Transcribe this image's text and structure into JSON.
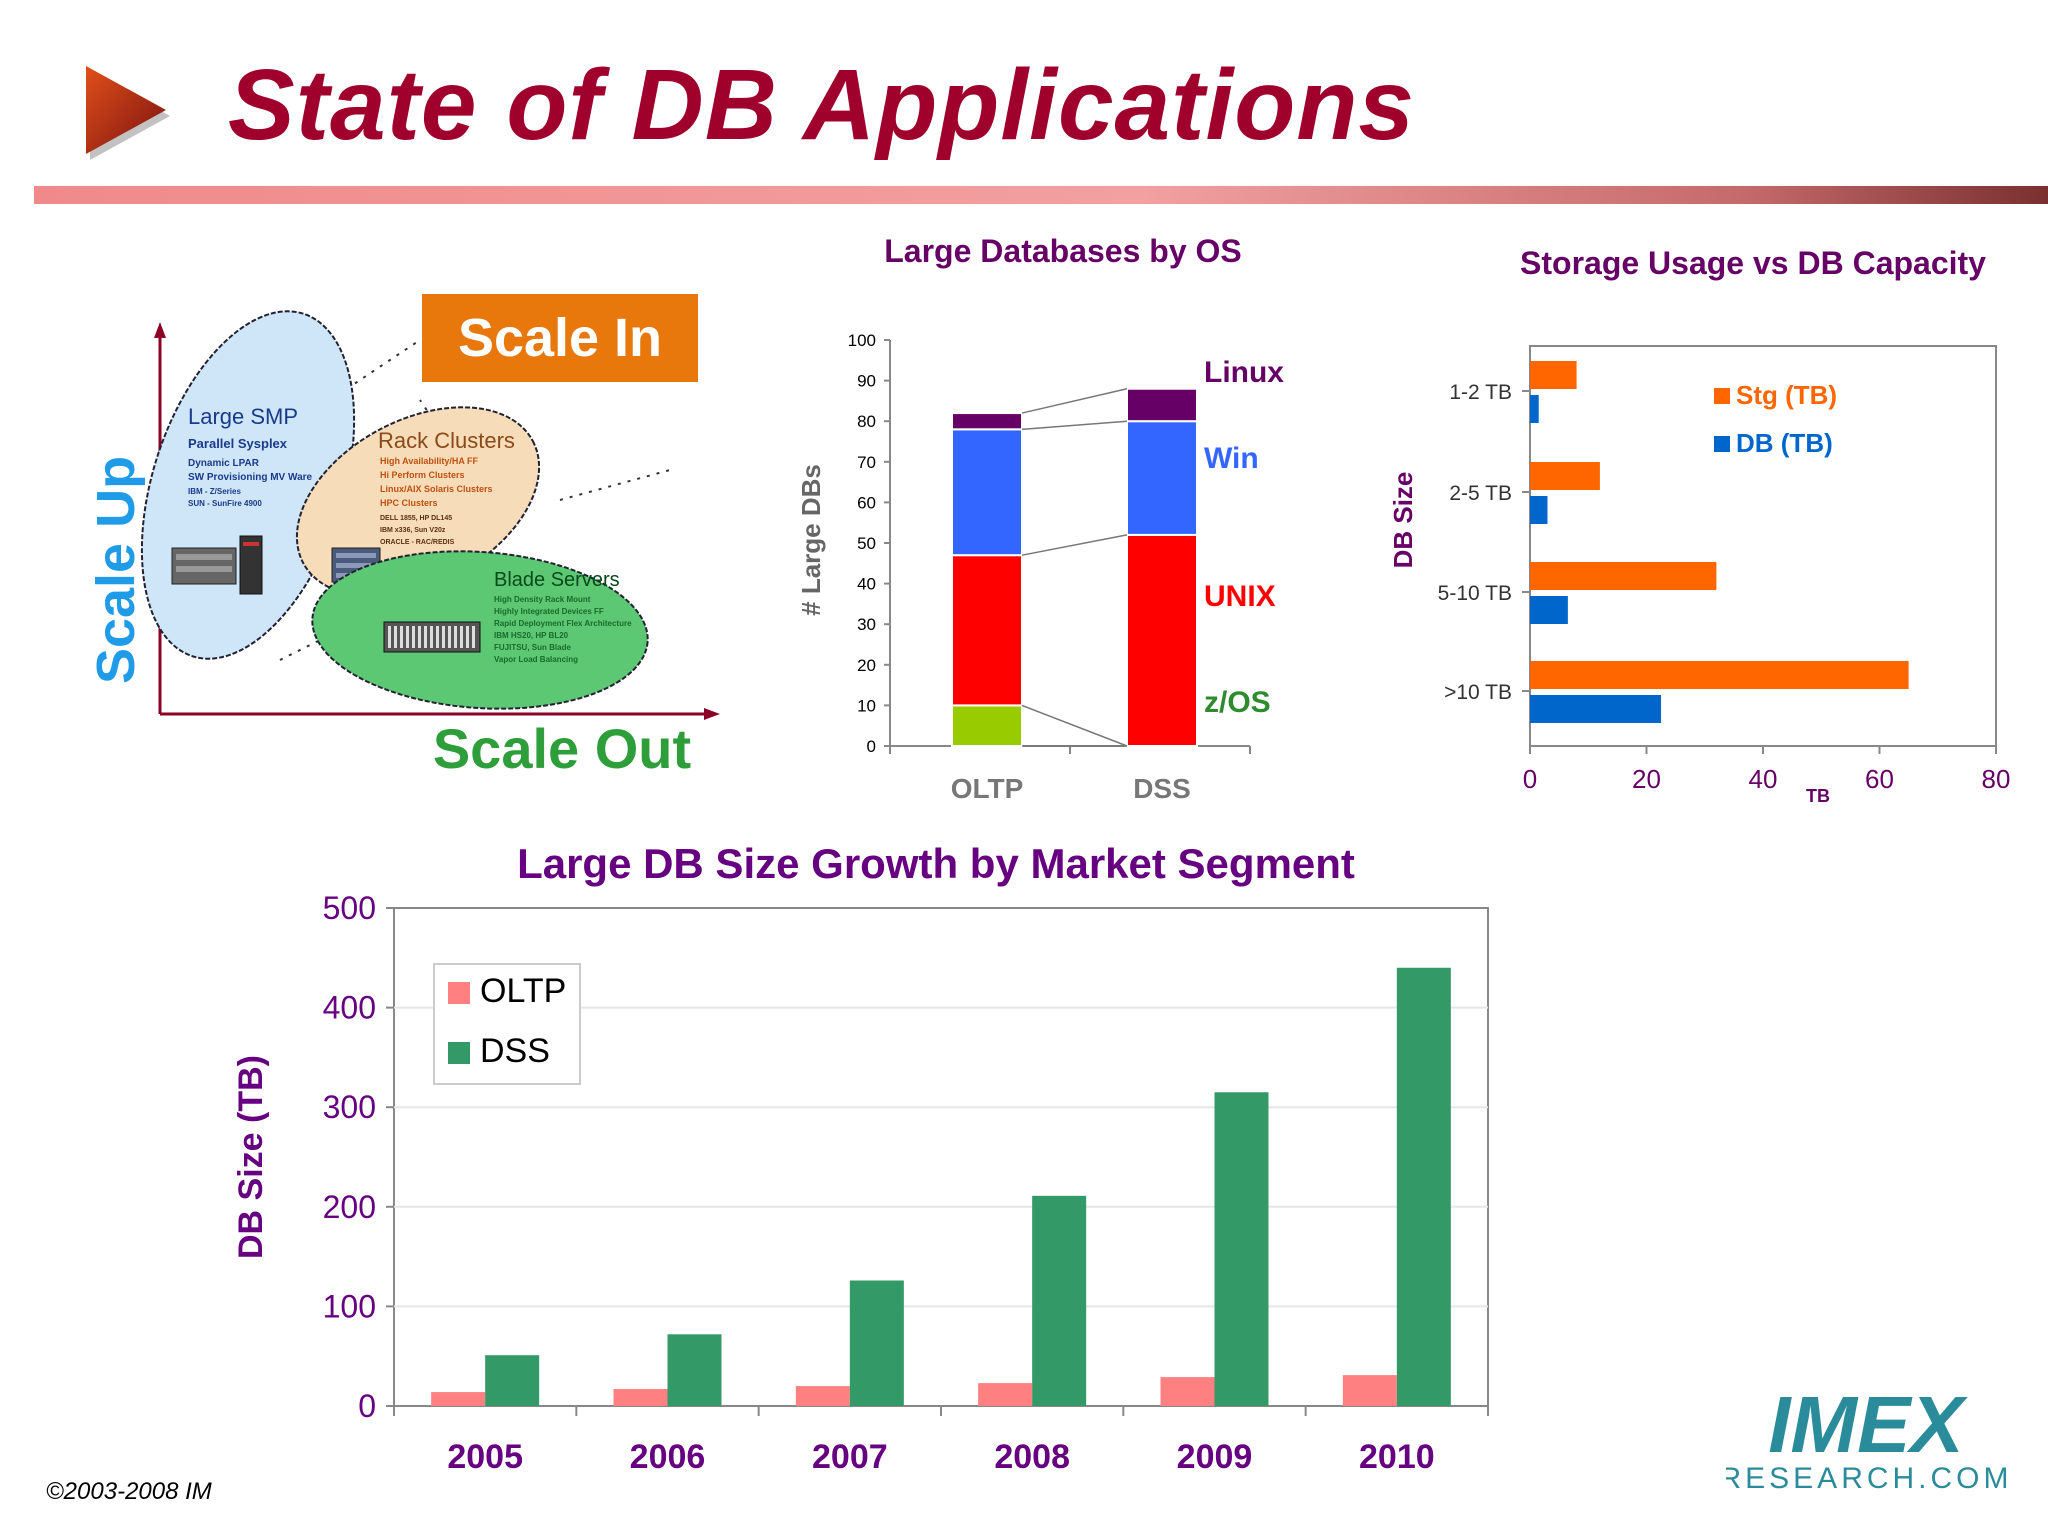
{
  "slide": {
    "title": "State of DB Applications",
    "title_color": "#a0002c",
    "footer": "©2003-2008  IM",
    "logo": {
      "main": "IMEX",
      "sub": "RESEARCH.COM",
      "color": "#2a8c9a"
    }
  },
  "diagram": {
    "scale_up": "Scale Up",
    "scale_in": "Scale In",
    "scale_out": "Scale Out",
    "colors": {
      "scale_up": "#1f9be8",
      "scale_in_bg": "#e8780c",
      "scale_out": "#2e9e3a"
    },
    "ellipses": [
      {
        "name": "large-smp",
        "title": "Large SMP",
        "lines": [
          "Parallel Sysplex",
          "Dynamic LPAR",
          "SW Provisioning MV Ware",
          "IBM - Z/Series",
          "SUN - SunFire 4900"
        ]
      },
      {
        "name": "rack-clusters",
        "title": "Rack Clusters",
        "lines": [
          "High Availability/HA FF",
          "Hi Perform Clusters",
          "Linux/AIX Solaris Clusters",
          "HPC Clusters",
          "DELL 1855, HP DL145",
          "IBM x336, Sun V20z",
          "ORACLE - RAC/REDIS"
        ]
      },
      {
        "name": "blade-servers",
        "title": "Blade Servers",
        "lines": [
          "High Density Rack Mount",
          "Highly Integrated Devices FF",
          "Rapid Deployment Flex Architecture",
          "IBM HS20, HP BL20",
          "FUJITSU, Sun Blade",
          "Vapor Load Balancing"
        ]
      }
    ]
  },
  "chart_data": [
    {
      "id": "large-databases-by-os",
      "type": "bar",
      "stacked": true,
      "title": "Large Databases by OS",
      "ylabel": "# Large DBs",
      "ylim": [
        0,
        100
      ],
      "yticks": [
        0,
        10,
        20,
        30,
        40,
        50,
        60,
        70,
        80,
        90,
        100
      ],
      "categories": [
        "OLTP",
        "DSS"
      ],
      "series": [
        {
          "name": "z/OS",
          "values": [
            10,
            0
          ],
          "color": "#99cc00",
          "label_color": "#2e8b2e"
        },
        {
          "name": "UNIX",
          "values": [
            37,
            52
          ],
          "color": "#ff0000",
          "label_color": "#ff0000"
        },
        {
          "name": "Win",
          "values": [
            31,
            28
          ],
          "color": "#3366ff",
          "label_color": "#3366ff"
        },
        {
          "name": "Linux",
          "values": [
            4,
            8
          ],
          "color": "#660066",
          "label_color": "#660066"
        }
      ]
    },
    {
      "id": "storage-usage-vs-db-capacity",
      "type": "bar",
      "orientation": "horizontal",
      "title": "Storage Usage vs DB Capacity",
      "xlabel": "TB",
      "ylabel": "DB Size",
      "xlim": [
        0,
        80
      ],
      "xticks": [
        0,
        20,
        40,
        60,
        80
      ],
      "categories": [
        "1-2 TB",
        "2-5 TB",
        "5-10 TB",
        ">10 TB"
      ],
      "series": [
        {
          "name": "Stg (TB)",
          "values": [
            8,
            12,
            32,
            65
          ],
          "color": "#ff6600"
        },
        {
          "name": "DB (TB)",
          "values": [
            1.5,
            3,
            6.5,
            22.5
          ],
          "color": "#0066cc"
        }
      ],
      "legend": "top-right"
    },
    {
      "id": "large-db-size-growth",
      "type": "bar",
      "title": "Large DB Size Growth by Market Segment",
      "ylabel": "DB Size  (TB)",
      "ylim": [
        0,
        500
      ],
      "yticks": [
        0,
        100,
        200,
        300,
        400,
        500
      ],
      "categories": [
        "2005",
        "2006",
        "2007",
        "2008",
        "2009",
        "2010"
      ],
      "series": [
        {
          "name": "OLTP",
          "values": [
            14,
            17,
            20,
            23,
            29,
            31
          ],
          "color": "#ff8080"
        },
        {
          "name": "DSS",
          "values": [
            51,
            72,
            126,
            211,
            315,
            440
          ],
          "color": "#339966"
        }
      ],
      "legend": "top-left",
      "grid": true
    }
  ]
}
